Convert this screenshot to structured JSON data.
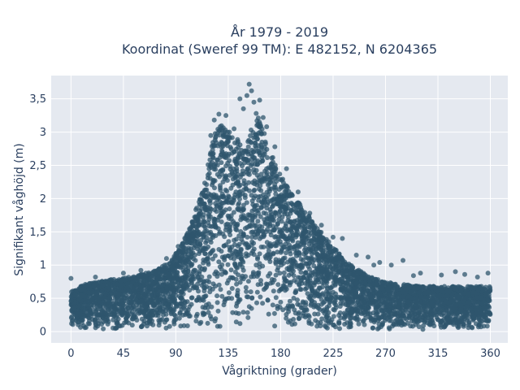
{
  "chart_data": {
    "type": "scatter",
    "title": "År 1979 - 2019",
    "subtitle": "Koordinat (Sweref 99 TM): E 482152, N 6204365",
    "xlabel": "Vågriktning (grader)",
    "ylabel": "Signifikant våghöjd (m)",
    "xlim": [
      -17,
      375
    ],
    "ylim": [
      -0.17,
      3.85
    ],
    "x_ticks": [
      0,
      45,
      90,
      135,
      180,
      225,
      270,
      315,
      360
    ],
    "x_tick_labels": [
      "0",
      "45",
      "90",
      "135",
      "180",
      "225",
      "270",
      "315",
      "360"
    ],
    "y_ticks": [
      0,
      0.5,
      1,
      1.5,
      2,
      2.5,
      3,
      3.5
    ],
    "y_tick_labels": [
      "0",
      "0,5",
      "1",
      "1,5",
      "2",
      "2,5",
      "3",
      "3,5"
    ],
    "grid": true,
    "marker_color": "#2f566e",
    "plot_bg": "#e5e9f0",
    "envelope": {
      "x": [
        0,
        10,
        30,
        50,
        70,
        85,
        95,
        105,
        115,
        120,
        125,
        130,
        140,
        150,
        155,
        160,
        165,
        170,
        180,
        190,
        200,
        210,
        220,
        230,
        240,
        250,
        260,
        270,
        280,
        300,
        320,
        340,
        360
      ],
      "upper": [
        0.6,
        0.7,
        0.78,
        0.82,
        0.9,
        1.05,
        1.3,
        1.7,
        2.3,
        2.75,
        3.05,
        3.15,
        2.95,
        2.75,
        3.1,
        3.25,
        3.05,
        2.75,
        2.35,
        2.05,
        1.85,
        1.6,
        1.38,
        1.18,
        1.0,
        0.9,
        0.8,
        0.75,
        0.72,
        0.68,
        0.68,
        0.68,
        0.68
      ],
      "lower": [
        0.06,
        0.04,
        0.03,
        0.03,
        0.03,
        0.03,
        0.03,
        0.03,
        0.03,
        0.03,
        0.03,
        0.03,
        0.03,
        0.03,
        0.03,
        0.03,
        0.03,
        0.03,
        0.03,
        0.03,
        0.03,
        0.03,
        0.03,
        0.03,
        0.03,
        0.03,
        0.03,
        0.03,
        0.03,
        0.03,
        0.03,
        0.03,
        0.06
      ]
    },
    "outliers": [
      {
        "x": 0,
        "y": 0.8
      },
      {
        "x": 21,
        "y": 0.82
      },
      {
        "x": 45,
        "y": 0.88
      },
      {
        "x": 60,
        "y": 0.92
      },
      {
        "x": 82,
        "y": 1.1
      },
      {
        "x": 92,
        "y": 1.28
      },
      {
        "x": 100,
        "y": 1.45
      },
      {
        "x": 110,
        "y": 1.95
      },
      {
        "x": 120,
        "y": 2.95
      },
      {
        "x": 123,
        "y": 3.18
      },
      {
        "x": 127,
        "y": 3.27
      },
      {
        "x": 133,
        "y": 3.25
      },
      {
        "x": 136,
        "y": 3.0
      },
      {
        "x": 140,
        "y": 3.05
      },
      {
        "x": 145,
        "y": 3.5
      },
      {
        "x": 148,
        "y": 3.35
      },
      {
        "x": 151,
        "y": 3.55
      },
      {
        "x": 153,
        "y": 3.72
      },
      {
        "x": 155,
        "y": 3.62
      },
      {
        "x": 157,
        "y": 3.45
      },
      {
        "x": 159,
        "y": 3.28
      },
      {
        "x": 162,
        "y": 3.48
      },
      {
        "x": 165,
        "y": 3.22
      },
      {
        "x": 168,
        "y": 3.08
      },
      {
        "x": 175,
        "y": 2.78
      },
      {
        "x": 185,
        "y": 2.45
      },
      {
        "x": 195,
        "y": 2.1
      },
      {
        "x": 205,
        "y": 1.78
      },
      {
        "x": 215,
        "y": 1.6
      },
      {
        "x": 225,
        "y": 1.42
      },
      {
        "x": 233,
        "y": 1.4
      },
      {
        "x": 245,
        "y": 1.15
      },
      {
        "x": 255,
        "y": 1.12
      },
      {
        "x": 265,
        "y": 1.04
      },
      {
        "x": 275,
        "y": 1.0
      },
      {
        "x": 285,
        "y": 1.07
      },
      {
        "x": 300,
        "y": 0.88
      },
      {
        "x": 318,
        "y": 0.85
      },
      {
        "x": 330,
        "y": 0.9
      },
      {
        "x": 338,
        "y": 0.86
      },
      {
        "x": 358,
        "y": 0.88
      },
      {
        "x": 349,
        "y": 0.82
      },
      {
        "x": 294,
        "y": 0.84
      },
      {
        "x": 260,
        "y": 1.0
      }
    ]
  }
}
